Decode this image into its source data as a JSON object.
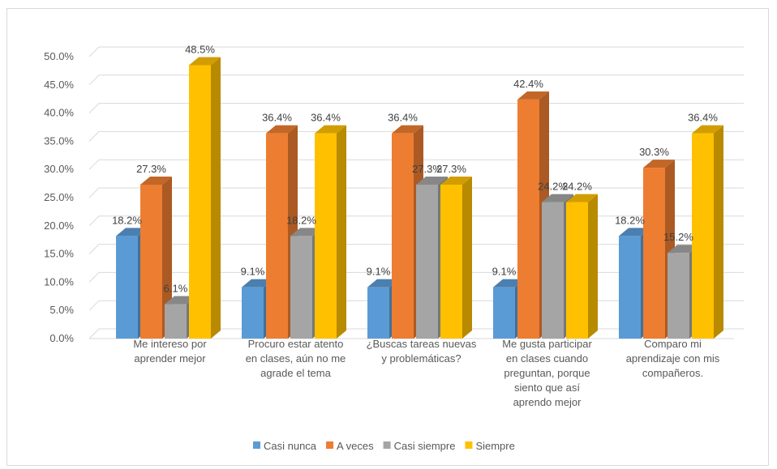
{
  "chart_data": {
    "type": "bar",
    "style": "3d-clustered-column",
    "categories": [
      [
        "Me intereso por",
        "aprender mejor"
      ],
      [
        "Procuro estar atento",
        "en clases, aún no me",
        "agrade el tema"
      ],
      [
        "¿Buscas tareas nuevas",
        "y problemáticas?"
      ],
      [
        "Me gusta participar",
        "en clases cuando",
        "preguntan, porque",
        "siento que así",
        "aprendo mejor"
      ],
      [
        "Comparo mi",
        "aprendizaje con mis",
        "compañeros."
      ]
    ],
    "series": [
      {
        "name": "Casi nunca",
        "color": "#5B9BD5",
        "values": [
          18.2,
          9.1,
          9.1,
          9.1,
          18.2
        ]
      },
      {
        "name": "A veces",
        "color": "#ED7D31",
        "values": [
          27.3,
          36.4,
          36.4,
          42.4,
          30.3
        ]
      },
      {
        "name": "Casi siempre",
        "color": "#A5A5A5",
        "values": [
          6.1,
          18.2,
          27.3,
          24.2,
          15.2
        ]
      },
      {
        "name": "Siempre",
        "color": "#FFC000",
        "values": [
          48.5,
          36.4,
          27.3,
          24.2,
          36.4
        ]
      }
    ],
    "ylim": [
      0,
      50
    ],
    "yticks": [
      "0.0%",
      "5.0%",
      "10.0%",
      "15.0%",
      "20.0%",
      "25.0%",
      "30.0%",
      "35.0%",
      "40.0%",
      "45.0%",
      "50.0%"
    ],
    "grid": true,
    "legend_position": "bottom"
  }
}
